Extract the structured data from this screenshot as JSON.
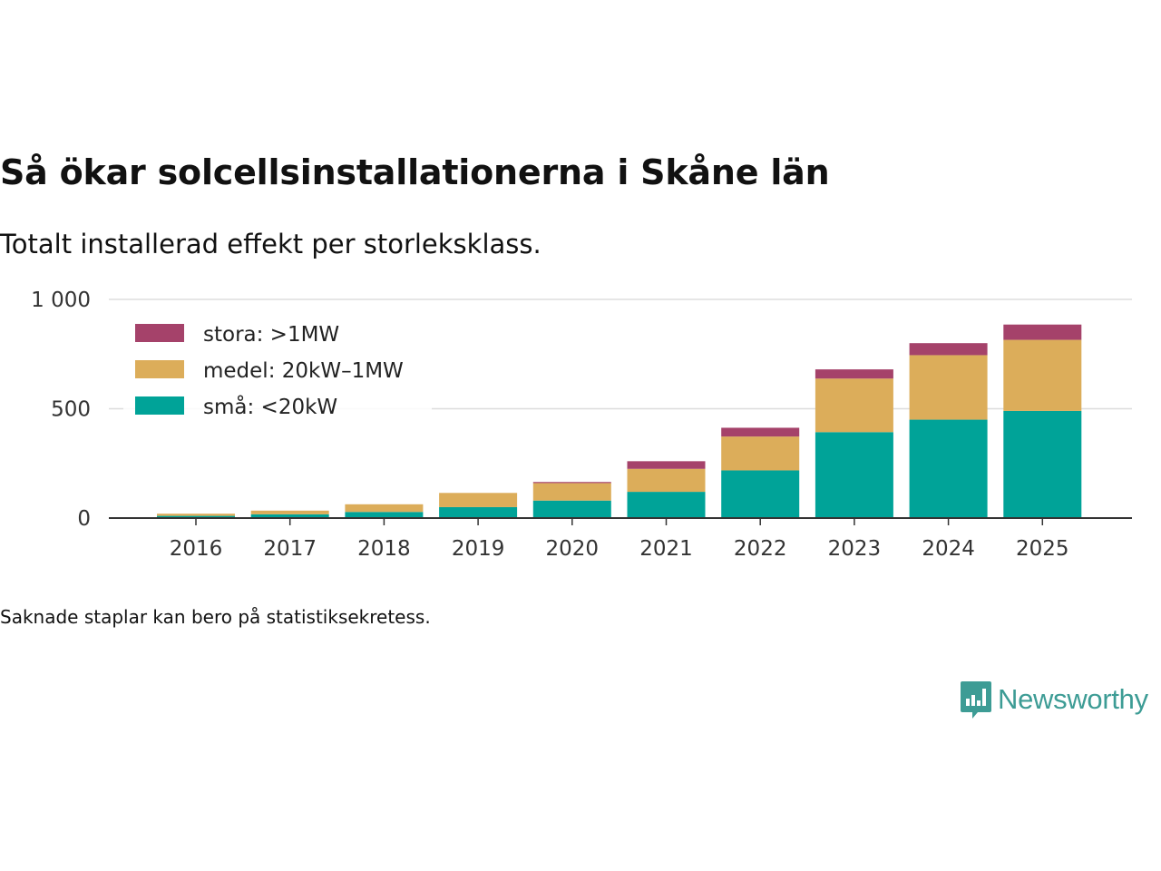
{
  "chart_data": {
    "type": "bar",
    "stacked": true,
    "title": "Så ökar solcellsinstallationerna i Skåne län",
    "subtitle": "Totalt installerad effekt per storleksklass.",
    "note": "Saknade staplar kan bero på statistiksekretess.",
    "categories": [
      "2016",
      "2017",
      "2018",
      "2019",
      "2020",
      "2021",
      "2022",
      "2023",
      "2024",
      "2025"
    ],
    "series": [
      {
        "name": "små: <20kW",
        "color": "#00a398",
        "values": [
          10,
          17,
          28,
          50,
          80,
          120,
          218,
          393,
          450,
          490
        ]
      },
      {
        "name": "medel: 20kW–1MW",
        "color": "#dcad5a",
        "values": [
          10,
          17,
          35,
          65,
          80,
          105,
          155,
          245,
          295,
          325
        ]
      },
      {
        "name": "stora: >1MW",
        "color": "#a5426a",
        "values": [
          0,
          0,
          0,
          0,
          5,
          35,
          40,
          42,
          55,
          70
        ]
      }
    ],
    "yticks": [
      0,
      500,
      1000
    ],
    "ytick_labels": [
      "0",
      "500",
      "1 000"
    ],
    "ylim": [
      0,
      1000
    ],
    "legend_position": "top-left"
  },
  "brand": {
    "name": "Newsworthy",
    "icon": "chart-bubble-icon"
  }
}
